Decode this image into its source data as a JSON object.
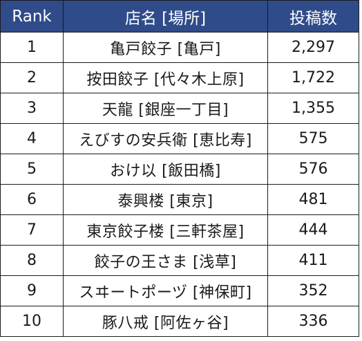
{
  "table": {
    "headers": {
      "rank": "Rank",
      "name": "店名 [場所]",
      "posts": "投稿数"
    },
    "rows": [
      {
        "rank": "1",
        "name": "亀戸餃子 [亀戸]",
        "posts": "2,297"
      },
      {
        "rank": "2",
        "name": "按田餃子 [代々木上原]",
        "posts": "1,722"
      },
      {
        "rank": "3",
        "name": "天龍 [銀座一丁目]",
        "posts": "1,355"
      },
      {
        "rank": "4",
        "name": "えびすの安兵衛 [恵比寿]",
        "posts": "575"
      },
      {
        "rank": "5",
        "name": "おけ以 [飯田橋]",
        "posts": "576"
      },
      {
        "rank": "6",
        "name": "泰興楼 [東京]",
        "posts": "481"
      },
      {
        "rank": "7",
        "name": "東京餃子楼 [三軒茶屋]",
        "posts": "444"
      },
      {
        "rank": "8",
        "name": "餃子の王さま [浅草]",
        "posts": "411"
      },
      {
        "rank": "9",
        "name": "スヰートポーヅ [神保町]",
        "posts": "352"
      },
      {
        "rank": "10",
        "name": "豚八戒 [阿佐ヶ谷]",
        "posts": "336"
      }
    ],
    "colors": {
      "header_bg": "#2f4b8a",
      "header_text": "#ffffff",
      "border": "#1a1a1a"
    }
  }
}
